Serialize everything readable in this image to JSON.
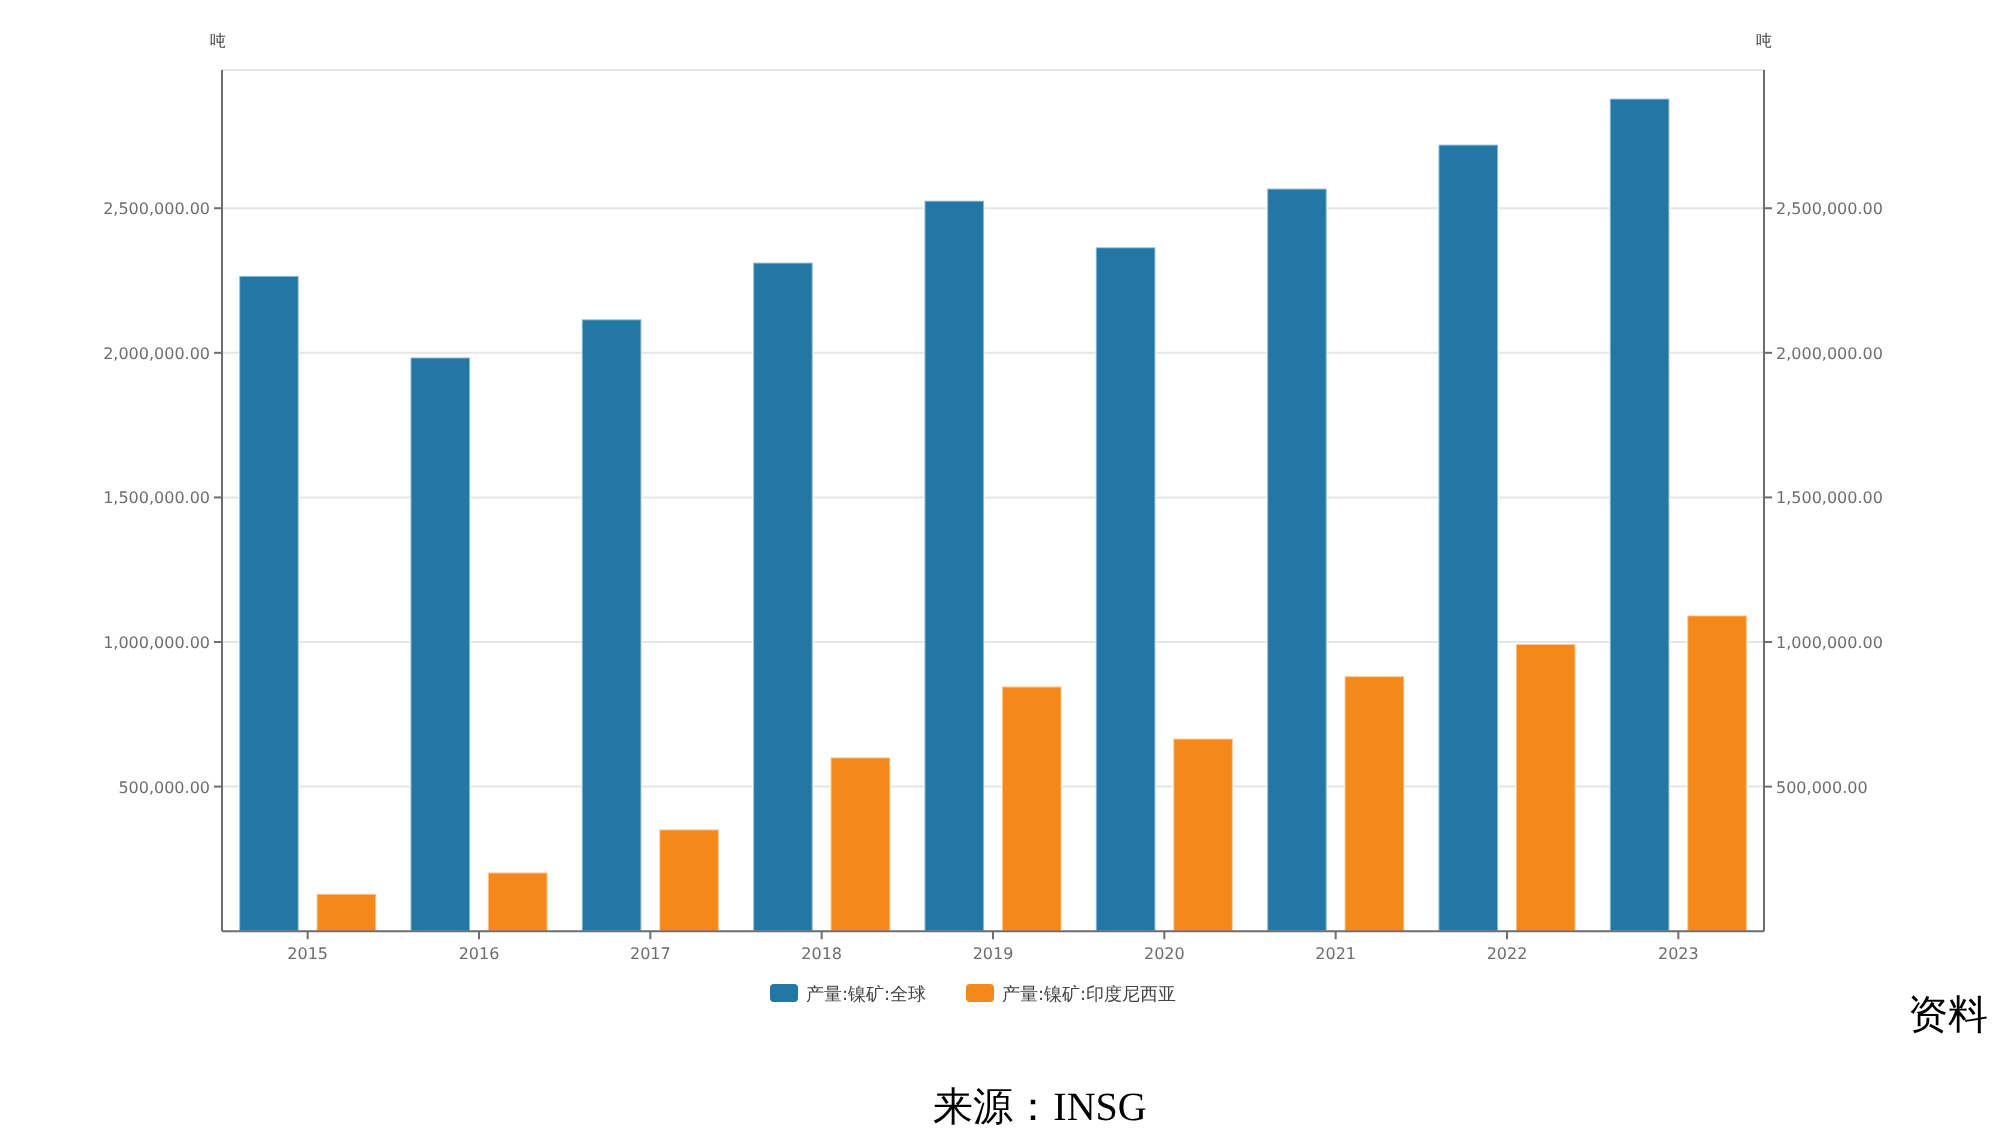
{
  "chart_data": {
    "type": "bar",
    "categories": [
      "2015",
      "2016",
      "2017",
      "2018",
      "2019",
      "2020",
      "2021",
      "2022",
      "2023"
    ],
    "series": [
      {
        "name": "产量:镍矿:全球",
        "color": "#2377a4",
        "values": [
          2266000,
          1984000,
          2116000,
          2312000,
          2526000,
          2365000,
          2568000,
          2720000,
          2879000
        ]
      },
      {
        "name": "产量:镍矿:印度尼西亚",
        "color": "#f5881a",
        "values": [
          129000,
          203000,
          352000,
          601000,
          846000,
          666000,
          882000,
          993000,
          1092000
        ]
      }
    ],
    "ylabel": "吨",
    "y2label": "吨",
    "ylim": [
      0,
      2978000
    ],
    "yticks": [
      {
        "value": 500000,
        "label": "500,000.00"
      },
      {
        "value": 1000000,
        "label": "1,000,000.00"
      },
      {
        "value": 1500000,
        "label": "1,500,000.00"
      },
      {
        "value": 2000000,
        "label": "2,000,000.00"
      },
      {
        "value": 2500000,
        "label": "2,500,000.00"
      }
    ],
    "y2lim": [
      0,
      2978000
    ],
    "y2ticks": [
      {
        "value": 500000,
        "label": "500,000.00"
      },
      {
        "value": 1000000,
        "label": "1,000,000.00"
      },
      {
        "value": 1500000,
        "label": "1,500,000.00"
      },
      {
        "value": 2000000,
        "label": "2,000,000.00"
      },
      {
        "value": 2500000,
        "label": "2,500,000.00"
      }
    ],
    "grid": "y",
    "legend": "bottom",
    "annotations": [
      "资料",
      "来源：INSG"
    ]
  }
}
